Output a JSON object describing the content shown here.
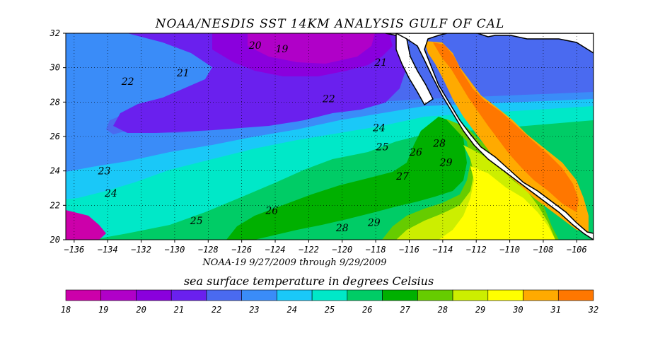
{
  "chart_data": {
    "type": "heatmap",
    "title": "NOAA/NESDIS SST 14KM ANALYSIS GULF OF CAL",
    "subtitle": "NOAA-19  9/27/2009 through 9/29/2009",
    "colorbar_label": "sea surface temperature in degrees Celsius",
    "xlim": [
      -136.5,
      -105
    ],
    "ylim": [
      20,
      32
    ],
    "x_ticks": [
      -136,
      -134,
      -132,
      -130,
      -128,
      -126,
      -124,
      -122,
      -120,
      -118,
      -116,
      -114,
      -112,
      -110,
      -108,
      -106
    ],
    "y_ticks": [
      20,
      22,
      24,
      26,
      28,
      30,
      32
    ],
    "grid": true,
    "colorbar": {
      "levels": [
        18,
        19,
        20,
        21,
        22,
        23,
        24,
        25,
        26,
        27,
        28,
        29,
        30,
        31,
        32
      ],
      "colors": [
        "#cc00aa",
        "#b000c8",
        "#8a00dd",
        "#6a20ee",
        "#4a6af0",
        "#3a8cf8",
        "#1ac8f8",
        "#00e8c8",
        "#00cc66",
        "#00b000",
        "#66cc00",
        "#ccee00",
        "#ffff00",
        "#ffaa00",
        "#ff7700"
      ]
    },
    "contour_labels": [
      {
        "value": "19",
        "lon": -123.6,
        "lat": 30.9
      },
      {
        "value": "20",
        "lon": -125.2,
        "lat": 31.1
      },
      {
        "value": "21",
        "lon": -129.5,
        "lat": 29.5
      },
      {
        "value": "21",
        "lon": -117.7,
        "lat": 30.1
      },
      {
        "value": "22",
        "lon": -132.8,
        "lat": 29.0
      },
      {
        "value": "22",
        "lon": -120.8,
        "lat": 28.0
      },
      {
        "value": "23",
        "lon": -134.2,
        "lat": 23.8
      },
      {
        "value": "24",
        "lon": -133.8,
        "lat": 22.5
      },
      {
        "value": "24",
        "lon": -117.8,
        "lat": 26.3
      },
      {
        "value": "25",
        "lon": -117.6,
        "lat": 25.2
      },
      {
        "value": "25",
        "lon": -128.7,
        "lat": 20.9
      },
      {
        "value": "26",
        "lon": -124.2,
        "lat": 21.5
      },
      {
        "value": "26",
        "lon": -115.6,
        "lat": 24.9
      },
      {
        "value": "27",
        "lon": -116.4,
        "lat": 23.5
      },
      {
        "value": "28",
        "lon": -114.2,
        "lat": 25.4
      },
      {
        "value": "28",
        "lon": -120.0,
        "lat": 20.5
      },
      {
        "value": "29",
        "lon": -113.8,
        "lat": 24.3
      },
      {
        "value": "29",
        "lon": -118.1,
        "lat": 20.8
      }
    ]
  }
}
